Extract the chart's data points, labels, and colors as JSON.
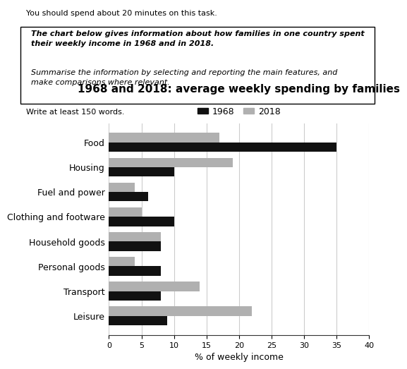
{
  "title": "1968 and 2018: average weekly spending by families",
  "xlabel": "% of weekly income",
  "categories": [
    "Food",
    "Housing",
    "Fuel and power",
    "Clothing and footware",
    "Household goods",
    "Personal goods",
    "Transport",
    "Leisure"
  ],
  "values_1968": [
    35,
    10,
    6,
    10,
    8,
    8,
    8,
    9
  ],
  "values_2018": [
    17,
    19,
    4,
    5,
    8,
    4,
    14,
    22
  ],
  "color_1968": "#111111",
  "color_2018": "#b0b0b0",
  "legend_labels": [
    "1968",
    "2018"
  ],
  "xlim": [
    0,
    40
  ],
  "xticks": [
    0,
    5,
    10,
    15,
    20,
    25,
    30,
    35,
    40
  ],
  "bar_height": 0.38,
  "top_text": "You should spend about 20 minutes on this task.",
  "box_text_bold": "The chart below gives information about how families in one country spent\ntheir weekly income in 1968 and in 2018.",
  "box_text_normal": "Summarise the information by selecting and reporting the main features, and\nmake comparisons where relevant.",
  "bottom_box_text": "Write at least 150 words.",
  "fig_bg": "#ffffff",
  "grid_color": "#cccccc",
  "title_fontsize": 11,
  "axis_label_fontsize": 9,
  "tick_fontsize": 8,
  "category_fontsize": 9
}
